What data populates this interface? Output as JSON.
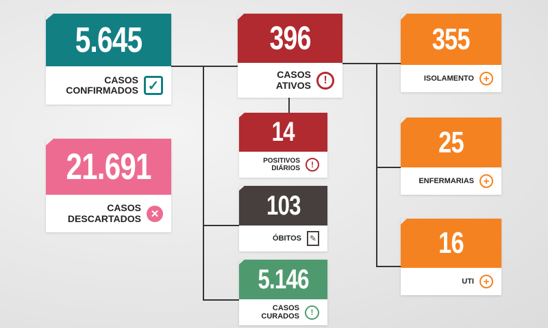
{
  "colors": {
    "confirmed": "#127f83",
    "active": "#b02a30",
    "discarded": "#ed6b91",
    "deaths": "#463f3d",
    "recovered": "#4e9a6e",
    "hospital": "#f58220"
  },
  "cards": {
    "confirmados": {
      "value": "5.645",
      "label1": "CASOS",
      "label2": "CONFIRMADOS",
      "icon": "check-box-icon"
    },
    "descartados": {
      "value": "21.691",
      "label1": "CASOS",
      "label2": "DESCARTADOS",
      "icon": "x-circle-icon"
    },
    "ativos": {
      "value": "396",
      "label1": "CASOS",
      "label2": "ATIVOS",
      "icon": "exclamation-circle-icon"
    },
    "positivos": {
      "value": "14",
      "label1": "POSITIVOS",
      "label2": "DIÁRIOS",
      "icon": "exclamation-circle-icon"
    },
    "obitos": {
      "value": "103",
      "label1": "ÓBITOS",
      "icon": "document-pen-icon"
    },
    "curados": {
      "value": "5.146",
      "label1": "CASOS",
      "label2": "CURADOS",
      "icon": "exclamation-circle-icon"
    },
    "isolamento": {
      "value": "355",
      "label1": "ISOLAMENTO",
      "icon": "plus-circle-icon"
    },
    "enfermarias": {
      "value": "25",
      "label1": "ENFERMARIAS",
      "icon": "plus-circle-icon"
    },
    "uti": {
      "value": "16",
      "label1": "UTI",
      "icon": "plus-circle-icon"
    }
  }
}
